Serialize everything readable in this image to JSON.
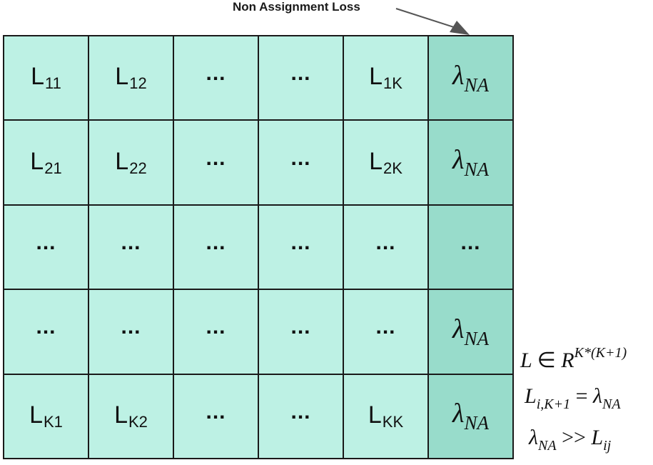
{
  "annotation": {
    "label": "Non Assignment Loss"
  },
  "matrix": {
    "rows": [
      [
        {
          "kind": "loss",
          "base": "L",
          "sub": "11"
        },
        {
          "kind": "loss",
          "base": "L",
          "sub": "12"
        },
        {
          "kind": "ellipsis",
          "text": "..."
        },
        {
          "kind": "ellipsis",
          "text": "..."
        },
        {
          "kind": "loss",
          "base": "L",
          "sub": "1K"
        },
        {
          "kind": "lambda",
          "base": "λ",
          "sub": "NA"
        }
      ],
      [
        {
          "kind": "loss",
          "base": "L",
          "sub": "21"
        },
        {
          "kind": "loss",
          "base": "L",
          "sub": "22"
        },
        {
          "kind": "ellipsis",
          "text": "..."
        },
        {
          "kind": "ellipsis",
          "text": "..."
        },
        {
          "kind": "loss",
          "base": "L",
          "sub": "2K"
        },
        {
          "kind": "lambda",
          "base": "λ",
          "sub": "NA"
        }
      ],
      [
        {
          "kind": "ellipsis",
          "text": "..."
        },
        {
          "kind": "ellipsis",
          "text": "..."
        },
        {
          "kind": "ellipsis",
          "text": "..."
        },
        {
          "kind": "ellipsis",
          "text": "..."
        },
        {
          "kind": "ellipsis",
          "text": "..."
        },
        {
          "kind": "ellipsis",
          "text": "..."
        }
      ],
      [
        {
          "kind": "ellipsis",
          "text": "..."
        },
        {
          "kind": "ellipsis",
          "text": "..."
        },
        {
          "kind": "ellipsis",
          "text": "..."
        },
        {
          "kind": "ellipsis",
          "text": "..."
        },
        {
          "kind": "ellipsis",
          "text": "..."
        },
        {
          "kind": "lambda",
          "base": "λ",
          "sub": "NA"
        }
      ],
      [
        {
          "kind": "loss",
          "base": "L",
          "sub": "K1"
        },
        {
          "kind": "loss",
          "base": "L",
          "sub": "K2"
        },
        {
          "kind": "ellipsis",
          "text": "..."
        },
        {
          "kind": "ellipsis",
          "text": "..."
        },
        {
          "kind": "loss",
          "base": "L",
          "sub": "KK"
        },
        {
          "kind": "lambda",
          "base": "λ",
          "sub": "NA"
        }
      ]
    ]
  },
  "equations": {
    "eq1": {
      "lhs": "L",
      "op": "∈",
      "base": "R",
      "sup": "K*(K+1)"
    },
    "eq2": {
      "base": "L",
      "sub": "i,K+1",
      "op": "=",
      "rhs_base": "λ",
      "rhs_sub": "NA"
    },
    "eq3": {
      "base": "λ",
      "sub": "NA",
      "op": ">>",
      "rhs_base": "L",
      "rhs_sub": "ij"
    }
  },
  "colors": {
    "cell_fill": "#bdf1e4",
    "na_column_fill": "#98dccb",
    "grid_line": "#1a1a1a",
    "arrow": "#555555"
  }
}
